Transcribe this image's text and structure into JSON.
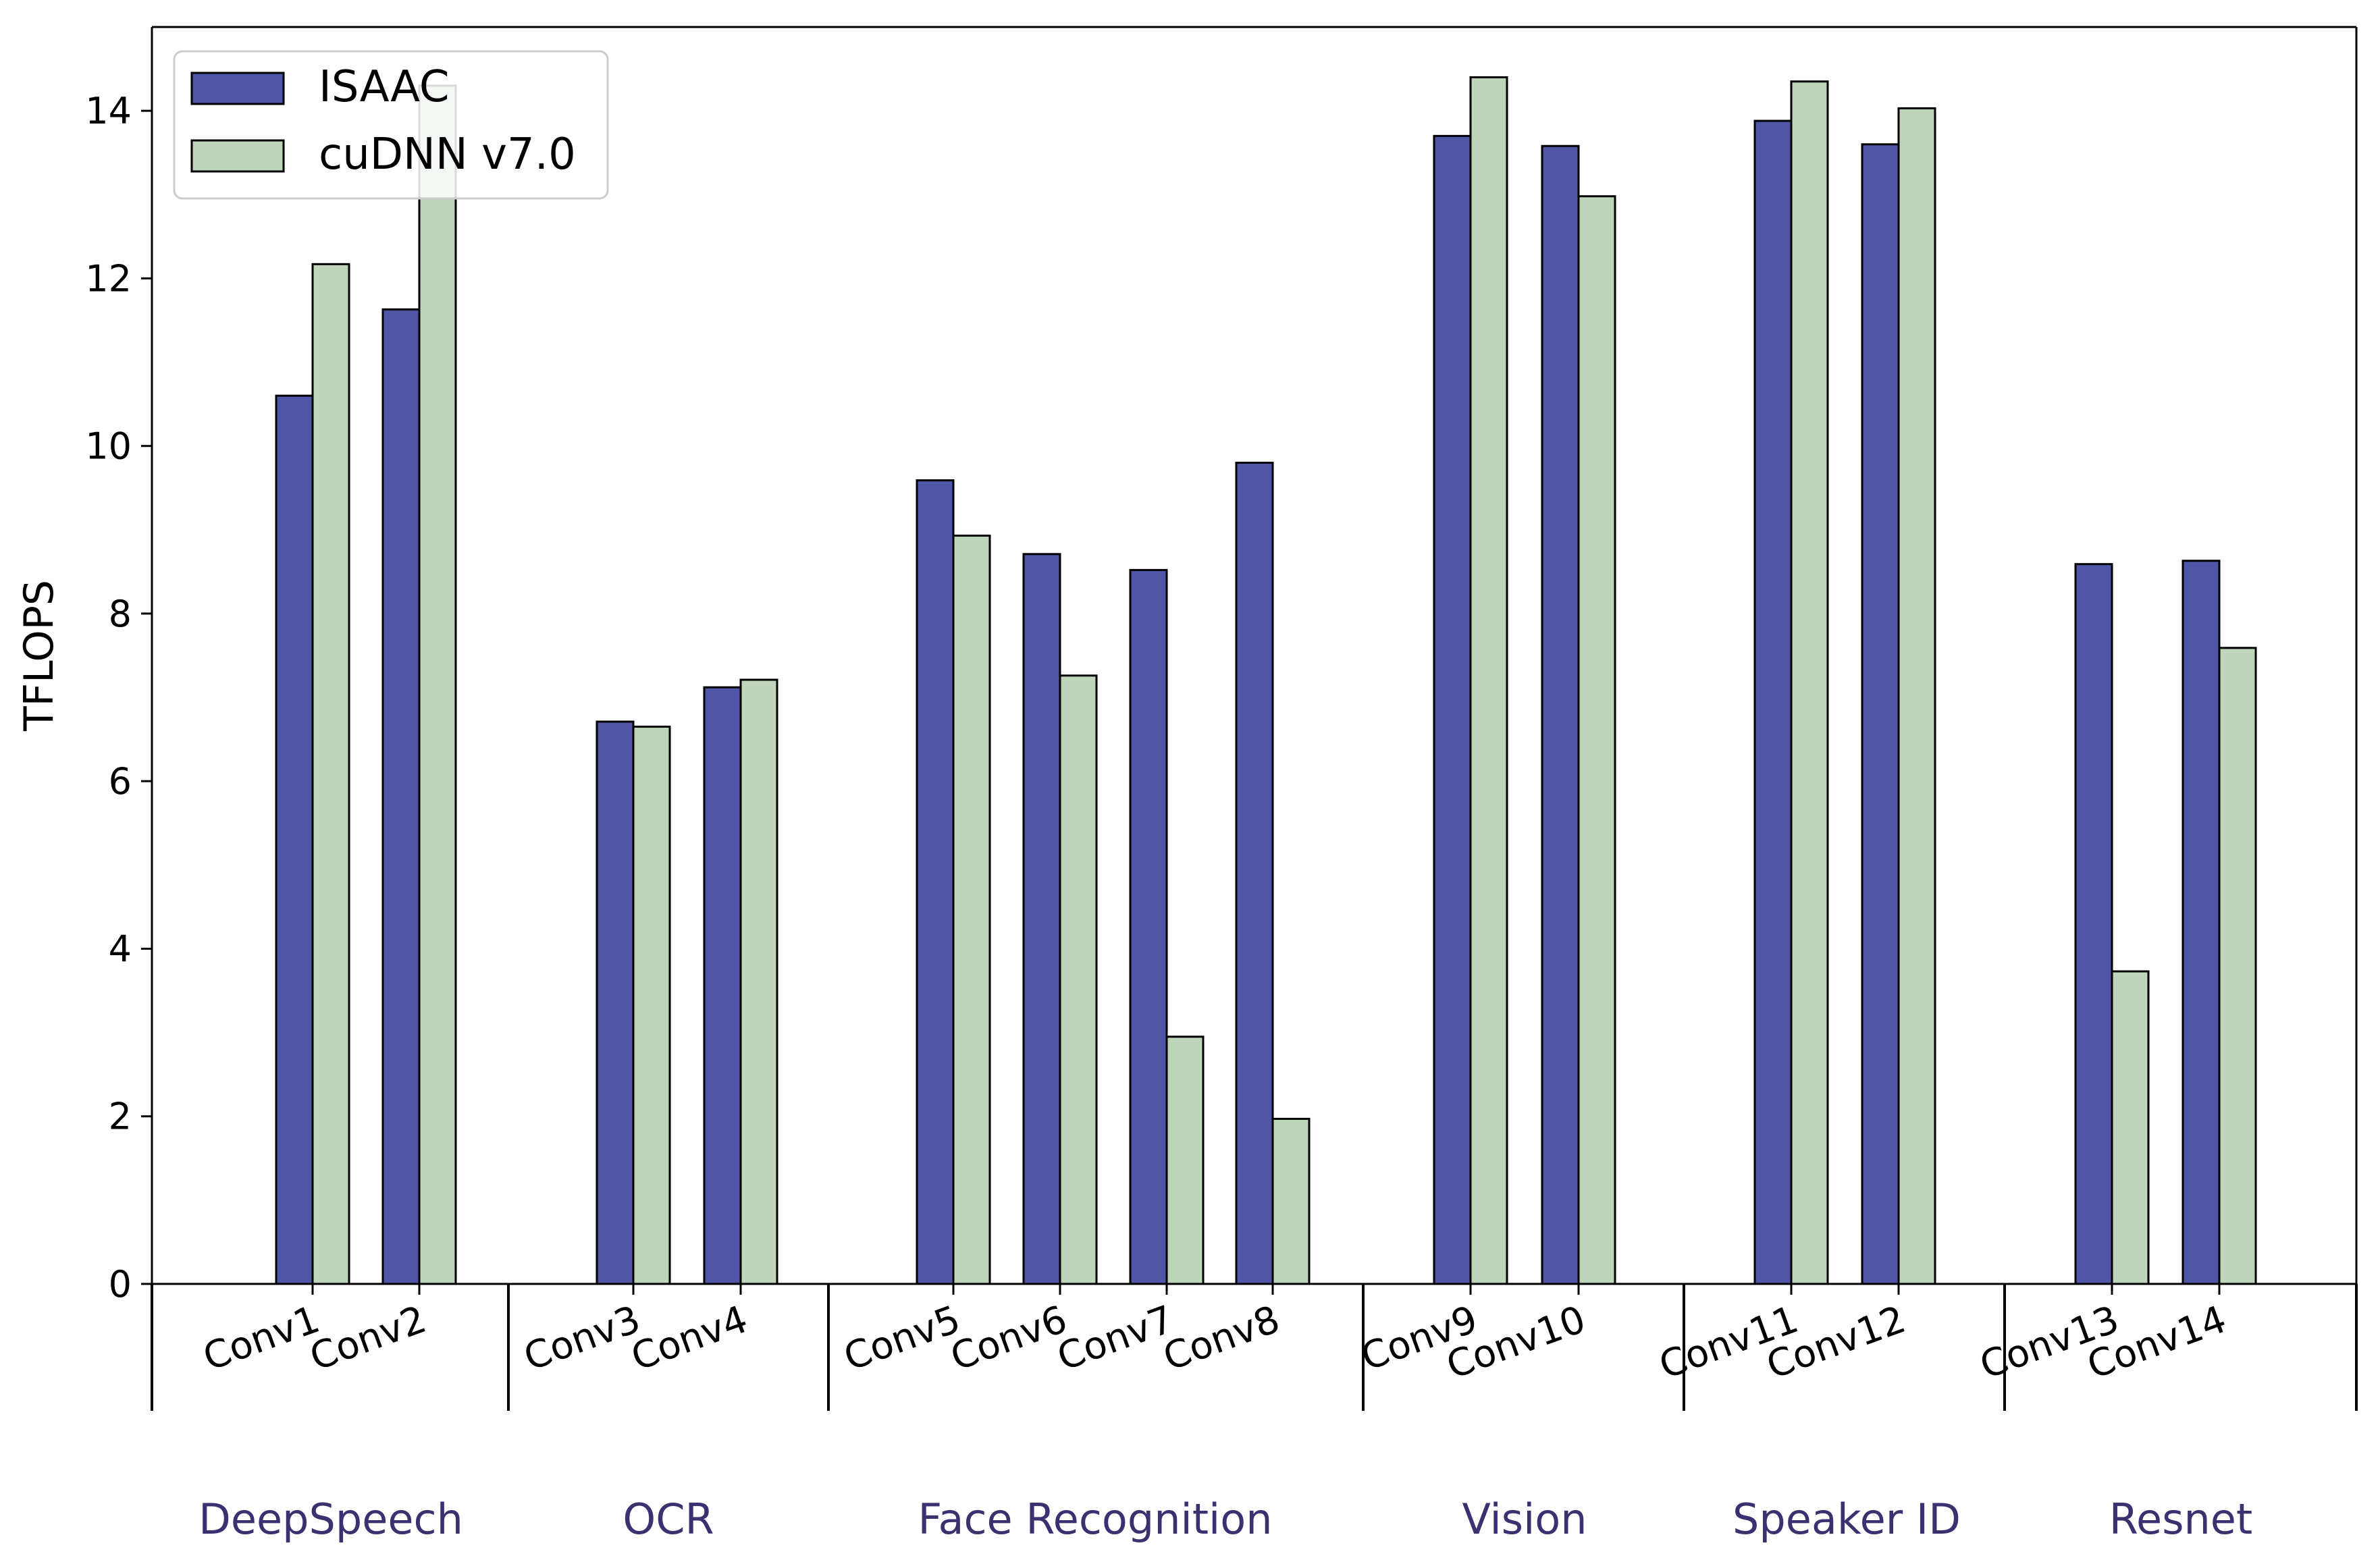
{
  "chart_data": {
    "type": "bar",
    "ylabel": "TFLOPS",
    "ylim": [
      0,
      15
    ],
    "yticks": [
      "0",
      "2",
      "4",
      "6",
      "8",
      "10",
      "12",
      "14"
    ],
    "grid": false,
    "legend_position": "top-left",
    "categories": [
      "Conv1",
      "Conv2",
      "Conv3",
      "Conv4",
      "Conv5",
      "Conv6",
      "Conv7",
      "Conv8",
      "Conv9",
      "Conv10",
      "Conv11",
      "Conv12",
      "Conv13",
      "Conv14"
    ],
    "groups": [
      {
        "label": "DeepSpeech",
        "members": [
          "Conv1",
          "Conv2"
        ]
      },
      {
        "label": "OCR",
        "members": [
          "Conv3",
          "Conv4"
        ]
      },
      {
        "label": "Face Recognition",
        "members": [
          "Conv5",
          "Conv6",
          "Conv7",
          "Conv8"
        ]
      },
      {
        "label": "Vision",
        "members": [
          "Conv9",
          "Conv10"
        ]
      },
      {
        "label": "Speaker ID",
        "members": [
          "Conv11",
          "Conv12"
        ]
      },
      {
        "label": "Resnet",
        "members": [
          "Conv13",
          "Conv14"
        ]
      }
    ],
    "group_label_color": "#3a3170",
    "series": [
      {
        "name": "ISAAC",
        "color": "#5056a6",
        "values": [
          10.6,
          11.63,
          6.71,
          7.12,
          9.59,
          8.71,
          8.52,
          9.8,
          13.7,
          13.58,
          13.88,
          13.6,
          8.59,
          8.63
        ]
      },
      {
        "name": "cuDNN v7.0",
        "color": "#bed5b9",
        "values": [
          12.17,
          14.3,
          6.65,
          7.21,
          8.93,
          7.26,
          2.95,
          1.97,
          14.4,
          12.98,
          14.35,
          14.03,
          3.73,
          7.59
        ]
      }
    ]
  }
}
